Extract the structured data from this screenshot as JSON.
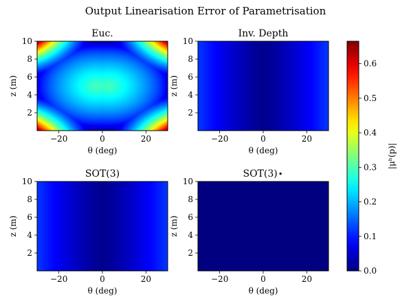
{
  "figure_title": "Output Linearisation Error of Parametrisation",
  "colorbar": {
    "label": "|μʰ(p)|",
    "ticks": [
      "0.0",
      "0.1",
      "0.2",
      "0.3",
      "0.4",
      "0.5",
      "0.6"
    ],
    "range": [
      0,
      0.665
    ],
    "colormap": "jet"
  },
  "chart_data": [
    {
      "type": "heatmap",
      "title": "Euc.",
      "xlabel": "θ (deg)",
      "ylabel": "z (m)",
      "xlim": [
        -30,
        30
      ],
      "ylim": [
        0,
        10
      ],
      "xticks": [
        "−20",
        "0",
        "20"
      ],
      "yticks": [
        "2",
        "4",
        "6",
        "8",
        "10"
      ],
      "model": "euclidean",
      "value_range": [
        0.0,
        0.665
      ]
    },
    {
      "type": "heatmap",
      "title": "Inv. Depth",
      "xlabel": "θ (deg)",
      "ylabel": "z (m)",
      "xlim": [
        -30,
        30
      ],
      "ylim": [
        0,
        10
      ],
      "xticks": [
        "−20",
        "0",
        "20"
      ],
      "yticks": [
        "2",
        "4",
        "6",
        "8",
        "10"
      ],
      "model": "theta_only",
      "value_range": [
        0.01,
        0.12
      ]
    },
    {
      "type": "heatmap",
      "title": "SOT(3)",
      "xlabel": "θ (deg)",
      "ylabel": "z (m)",
      "xlim": [
        -30,
        30
      ],
      "ylim": [
        0,
        10
      ],
      "xticks": [
        "−20",
        "0",
        "20"
      ],
      "yticks": [
        "2",
        "4",
        "6",
        "8",
        "10"
      ],
      "model": "theta_only",
      "value_range": [
        0.01,
        0.12
      ]
    },
    {
      "type": "heatmap",
      "title": "SOT(3)⋆",
      "xlabel": "θ (deg)",
      "ylabel": "z (m)",
      "xlim": [
        -30,
        30
      ],
      "ylim": [
        0,
        10
      ],
      "xticks": [
        "−20",
        "0",
        "20"
      ],
      "yticks": [
        "2",
        "4",
        "6",
        "8",
        "10"
      ],
      "model": "constant",
      "value_range": [
        0.0,
        0.005
      ]
    }
  ]
}
